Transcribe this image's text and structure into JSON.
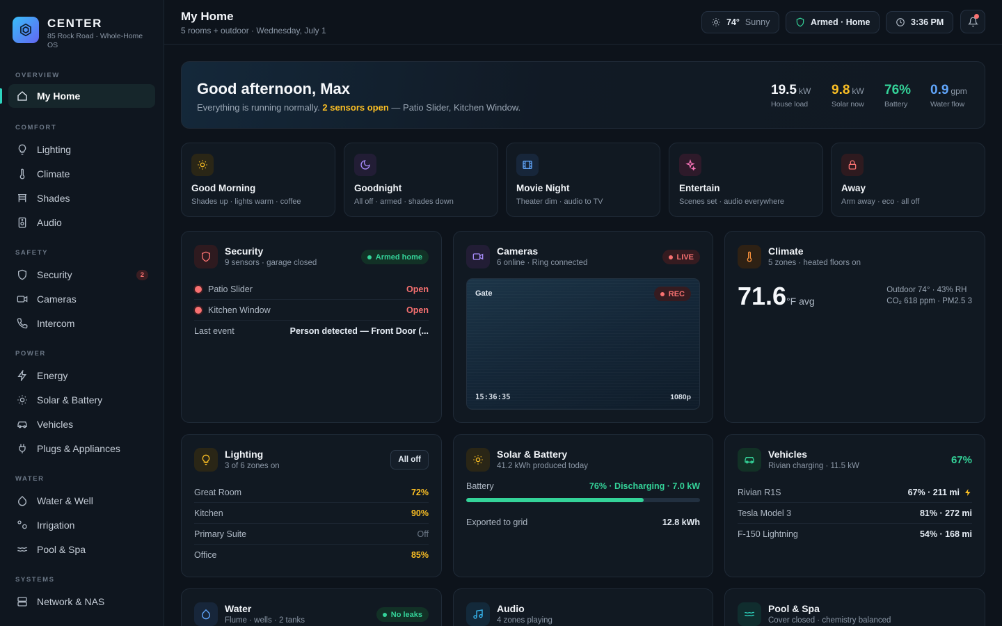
{
  "brand": {
    "name": "CENTER",
    "subtitle": "85 Rock Road · Whole-Home OS"
  },
  "nav": {
    "sections": [
      {
        "label": "OVERVIEW",
        "items": [
          {
            "label": "My Home",
            "icon": "home-icon",
            "active": true
          }
        ]
      },
      {
        "label": "COMFORT",
        "items": [
          {
            "label": "Lighting",
            "icon": "bulb-icon"
          },
          {
            "label": "Climate",
            "icon": "thermometer-icon"
          },
          {
            "label": "Shades",
            "icon": "shades-icon"
          },
          {
            "label": "Audio",
            "icon": "speaker-icon"
          }
        ]
      },
      {
        "label": "SAFETY",
        "items": [
          {
            "label": "Security",
            "icon": "shield-icon",
            "badge": "2"
          },
          {
            "label": "Cameras",
            "icon": "camera-icon"
          },
          {
            "label": "Intercom",
            "icon": "phone-icon"
          }
        ]
      },
      {
        "label": "POWER",
        "items": [
          {
            "label": "Energy",
            "icon": "bolt-icon"
          },
          {
            "label": "Solar & Battery",
            "icon": "sun-icon"
          },
          {
            "label": "Vehicles",
            "icon": "car-icon"
          },
          {
            "label": "Plugs & Appliances",
            "icon": "plug-icon"
          }
        ]
      },
      {
        "label": "WATER",
        "items": [
          {
            "label": "Water & Well",
            "icon": "drop-icon"
          },
          {
            "label": "Irrigation",
            "icon": "sprinkler-icon"
          },
          {
            "label": "Pool & Spa",
            "icon": "waves-icon"
          }
        ]
      },
      {
        "label": "SYSTEMS",
        "items": [
          {
            "label": "Network & NAS",
            "icon": "server-icon"
          }
        ]
      }
    ]
  },
  "header": {
    "title": "My Home",
    "subtitle": "5 rooms + outdoor · Wednesday, July 1",
    "weather_temp": "74°",
    "weather_desc": "Sunny",
    "security_status": "Armed · Home",
    "time": "3:36 PM"
  },
  "hero": {
    "greeting": "Good afternoon, Max",
    "status_prefix": "Everything is running normally.",
    "status_alert": "2 sensors open",
    "status_suffix": "— Patio Slider, Kitchen Window.",
    "stats": [
      {
        "value": "19.5",
        "unit": "kW",
        "label": "House load",
        "color": "#f3f6fa"
      },
      {
        "value": "9.8",
        "unit": "kW",
        "label": "Solar now",
        "color": "#fbbf24"
      },
      {
        "value": "76%",
        "unit": "",
        "label": "Battery",
        "color": "#34d399"
      },
      {
        "value": "0.9",
        "unit": "gpm",
        "label": "Water flow",
        "color": "#60a5fa"
      }
    ]
  },
  "scenes": [
    {
      "title": "Good Morning",
      "subtitle": "Shades up · lights warm · coffee",
      "icon": "sun-icon",
      "color": "#fbbf24",
      "bg": "#2a2616"
    },
    {
      "title": "Goodnight",
      "subtitle": "All off · armed · shades down",
      "icon": "moon-icon",
      "color": "#a78bfa",
      "bg": "#221d35"
    },
    {
      "title": "Movie Night",
      "subtitle": "Theater dim · audio to TV",
      "icon": "film-icon",
      "color": "#60a5fa",
      "bg": "#17263a"
    },
    {
      "title": "Entertain",
      "subtitle": "Scenes set · audio everywhere",
      "icon": "sparkle-icon",
      "color": "#f472b6",
      "bg": "#2e1a2a"
    },
    {
      "title": "Away",
      "subtitle": "Arm away · eco · all off",
      "icon": "lock-icon",
      "color": "#f87171",
      "bg": "#2e1a1f"
    }
  ],
  "security": {
    "title": "Security",
    "subtitle": "9 sensors · garage closed",
    "badge": "Armed home",
    "sensors": [
      {
        "name": "Patio Slider",
        "state": "Open"
      },
      {
        "name": "Kitchen Window",
        "state": "Open"
      }
    ],
    "last_event_label": "Last event",
    "last_event": "Person detected — Front Door (..."
  },
  "cameras": {
    "title": "Cameras",
    "subtitle": "6 online · Ring connected",
    "badge": "LIVE",
    "feed_name": "Gate",
    "rec": "REC",
    "timestamp": "15:36:35",
    "resolution": "1080p"
  },
  "climate": {
    "title": "Climate",
    "subtitle": "5 zones · heated floors on",
    "temp": "71.6",
    "temp_unit": "°F avg",
    "outdoor": "Outdoor 74° · 43% RH",
    "air": "CO₂ 618 ppm · PM2.5 3"
  },
  "lighting": {
    "title": "Lighting",
    "subtitle": "3 of 6 zones on",
    "button": "All off",
    "zones": [
      {
        "name": "Great Room",
        "level": "72%"
      },
      {
        "name": "Kitchen",
        "level": "90%"
      },
      {
        "name": "Primary Suite",
        "level": "Off"
      },
      {
        "name": "Office",
        "level": "85%"
      }
    ]
  },
  "solar": {
    "title": "Solar & Battery",
    "subtitle": "41.2 kWh produced today",
    "battery_label": "Battery",
    "battery_status": "76% · Discharging · 7.0 kW",
    "battery_fraction": 0.76,
    "export_label": "Exported to grid",
    "export_value": "12.8 kWh"
  },
  "vehicles": {
    "title": "Vehicles",
    "subtitle": "Rivian charging · 11.5 kW",
    "charge": "67%",
    "list": [
      {
        "name": "Rivian R1S",
        "status": "67% · 211 mi",
        "charging": true
      },
      {
        "name": "Tesla Model 3",
        "status": "81% · 272 mi"
      },
      {
        "name": "F-150 Lightning",
        "status": "54% · 168 mi"
      }
    ]
  },
  "water": {
    "title": "Water",
    "subtitle": "Flume · wells · 2 tanks",
    "badge": "No leaks"
  },
  "audio": {
    "title": "Audio",
    "subtitle": "4 zones playing"
  },
  "pool": {
    "title": "Pool & Spa",
    "subtitle": "Cover closed · chemistry balanced"
  }
}
